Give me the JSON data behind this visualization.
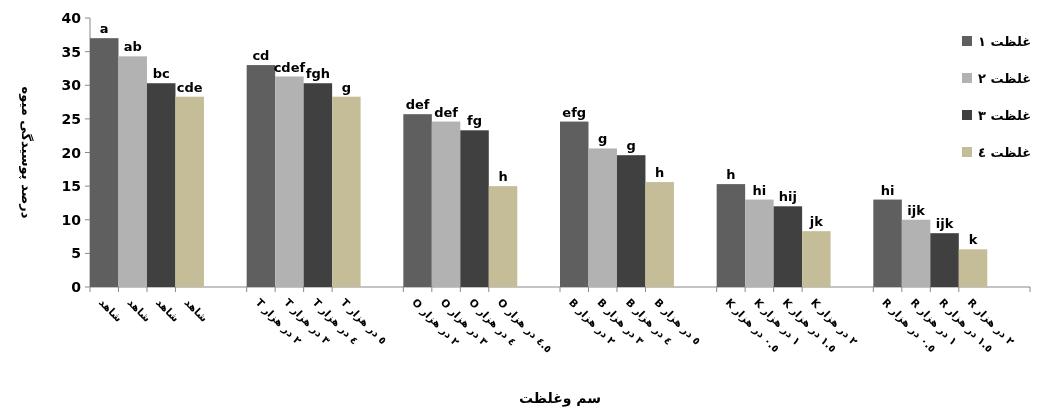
{
  "chart_data": {
    "type": "bar",
    "xlabel": "سم وغلظت",
    "ylabel": "درصد پوسیدگی میوه",
    "categories": [
      "شاهد",
      "شاهد",
      "شاهد",
      "شاهد",
      "T ٢ در هزار",
      "T ٣ در هزار",
      "T ٤ در هزار",
      "T ٥ در هزار",
      "O ٢ در هزار",
      "O ٣ در هزار",
      "O ٤ در هزار",
      "O ٤.٥ در هزار",
      "B ٢ در هزار",
      "B ٣ در هزار",
      "B ٤ در هزار",
      "B ٥ در هزار",
      "K ٠.٥ در هزار",
      "K ١ در هزار",
      "K ١.٥ در هزار",
      "K ٢ در هزار",
      "R ٠.٥ در هزار",
      "R ١ در هزار",
      "R ١.٥ در هزار",
      "R ٢ در هزار"
    ],
    "series": [
      {
        "name": "غلظت ١",
        "color": "#5f5f5f",
        "values": [
          37,
          null,
          null,
          null,
          33,
          null,
          null,
          null,
          25.7,
          null,
          null,
          null,
          24.6,
          null,
          null,
          null,
          15.3,
          null,
          null,
          null,
          13,
          null,
          null,
          null
        ],
        "value_labels": [
          "a",
          null,
          null,
          null,
          "cd",
          null,
          null,
          null,
          "def",
          null,
          null,
          null,
          "efg",
          null,
          null,
          null,
          "h",
          null,
          null,
          null,
          "hi",
          null,
          null,
          null
        ]
      },
      {
        "name": "غلظت ٢",
        "color": "#b2b2b2",
        "values": [
          null,
          34.3,
          null,
          null,
          null,
          31.3,
          null,
          null,
          null,
          24.6,
          null,
          null,
          null,
          20.6,
          null,
          null,
          null,
          13,
          null,
          null,
          null,
          10,
          null,
          null
        ],
        "value_labels": [
          null,
          "ab",
          null,
          null,
          null,
          "cdef",
          null,
          null,
          null,
          "def",
          null,
          null,
          null,
          "g",
          null,
          null,
          null,
          "hi",
          null,
          null,
          null,
          "ijk",
          null,
          null
        ]
      },
      {
        "name": "غلظت ٣",
        "color": "#404040",
        "values": [
          null,
          null,
          30.3,
          null,
          null,
          null,
          30.3,
          null,
          null,
          null,
          23.3,
          null,
          null,
          null,
          19.6,
          null,
          null,
          null,
          12,
          null,
          null,
          null,
          8,
          null
        ],
        "value_labels": [
          null,
          null,
          "bc",
          null,
          null,
          null,
          "fgh",
          null,
          null,
          null,
          "fg",
          null,
          null,
          null,
          "g",
          null,
          null,
          null,
          "hij",
          null,
          null,
          null,
          "ijk",
          null
        ]
      },
      {
        "name": "غلظت ٤",
        "color": "#c4bd97",
        "values": [
          null,
          null,
          null,
          28.3,
          null,
          null,
          null,
          28.3,
          null,
          null,
          null,
          15,
          null,
          null,
          null,
          15.6,
          null,
          null,
          null,
          8.3,
          null,
          null,
          null,
          5.6
        ],
        "value_labels": [
          null,
          null,
          null,
          "cde",
          null,
          null,
          null,
          "g",
          null,
          null,
          null,
          "h",
          null,
          null,
          null,
          "h",
          null,
          null,
          null,
          "jk",
          null,
          null,
          null,
          "k"
        ]
      }
    ],
    "ylim": [
      0,
      40
    ],
    "yticks": [
      0,
      5,
      10,
      15,
      20,
      25,
      30,
      35,
      40
    ],
    "legend": "right"
  }
}
